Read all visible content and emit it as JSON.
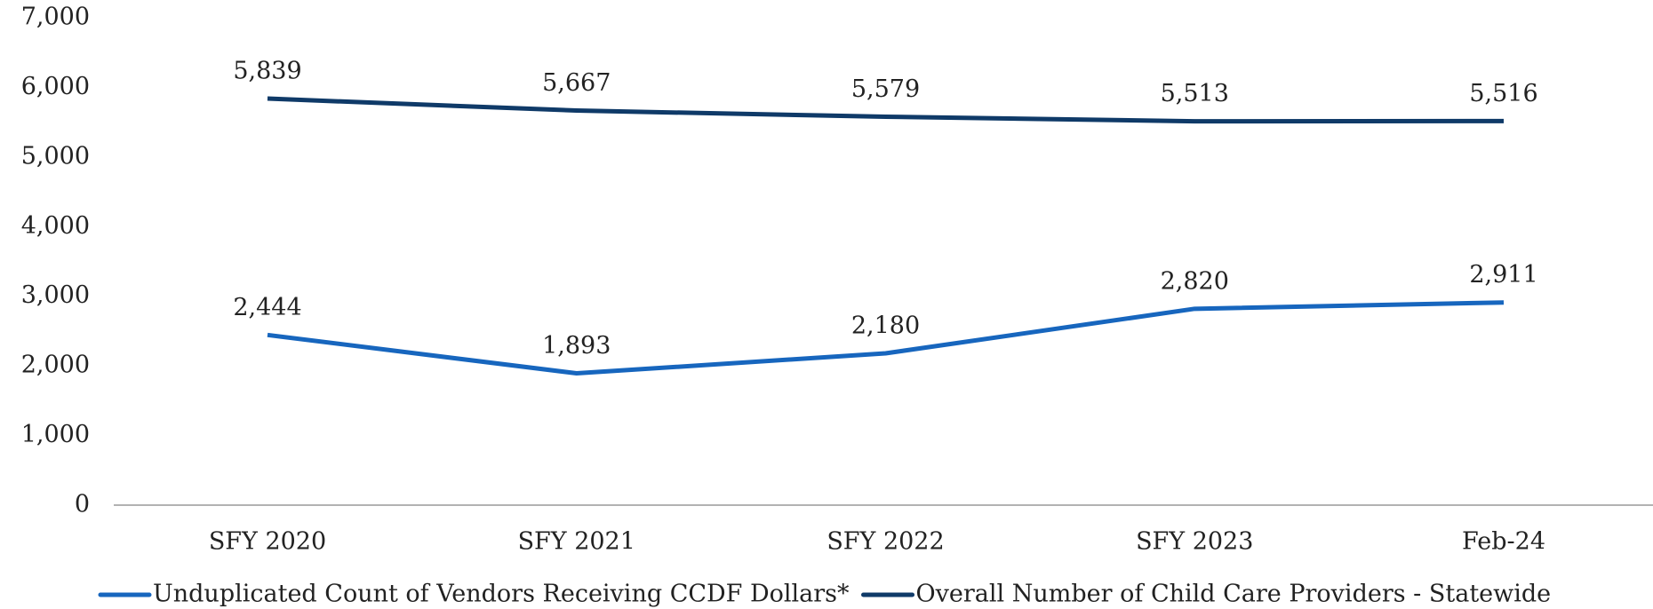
{
  "chart_data": {
    "type": "line",
    "categories": [
      "SFY 2020",
      "SFY 2021",
      "SFY 2022",
      "SFY 2023",
      "Feb-24"
    ],
    "series": [
      {
        "name": "Unduplicated Count of Vendors Receiving CCDF Dollars*",
        "color": "#1766be",
        "values": [
          2444,
          1893,
          2180,
          2820,
          2911
        ],
        "value_labels": [
          "2,444",
          "1,893",
          "2,180",
          "2,820",
          "2,911"
        ]
      },
      {
        "name": "Overall Number of Child Care Providers - Statewide",
        "color": "#0f3a68",
        "values": [
          5839,
          5667,
          5579,
          5513,
          5516
        ],
        "value_labels": [
          "5,839",
          "5,667",
          "5,579",
          "5,513",
          "5,516"
        ]
      }
    ],
    "ylim": [
      0,
      7000
    ],
    "yticks": [
      0,
      {
        "value": 1000,
        "label": "1,000"
      },
      {
        "value": 2000,
        "label": "2,000"
      },
      {
        "value": 3000,
        "label": "3,000"
      },
      {
        "value": 4000,
        "label": "4,000"
      },
      {
        "value": 5000,
        "label": "5,000"
      },
      {
        "value": 6000,
        "label": "6,000"
      },
      {
        "value": 7000,
        "label": "7,000"
      }
    ],
    "legend": "bottom"
  }
}
